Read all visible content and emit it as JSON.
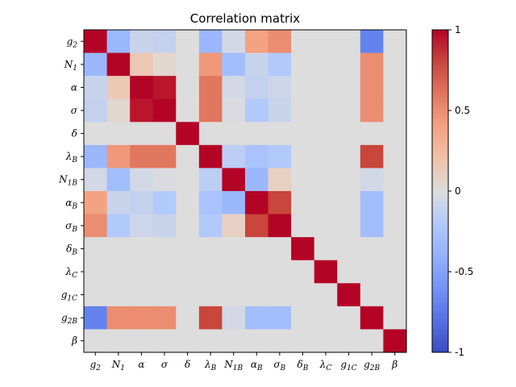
{
  "chart_data": {
    "type": "heatmap",
    "title": "Correlation matrix",
    "colormap": "coolwarm",
    "vmin": -1,
    "vmax": 1,
    "grid": false,
    "labels": [
      {
        "base": "g",
        "sub": "2"
      },
      {
        "base": "N",
        "sub": "1"
      },
      {
        "base": "α",
        "sub": ""
      },
      {
        "base": "σ",
        "sub": ""
      },
      {
        "base": "δ",
        "sub": ""
      },
      {
        "base": "λ",
        "sub": "B"
      },
      {
        "base": "N",
        "sub": "1B"
      },
      {
        "base": "α",
        "sub": "B"
      },
      {
        "base": "σ",
        "sub": "B"
      },
      {
        "base": "δ",
        "sub": "B"
      },
      {
        "base": "λ",
        "sub": "C"
      },
      {
        "base": "g",
        "sub": "1C"
      },
      {
        "base": "g",
        "sub": "2B"
      },
      {
        "base": "β",
        "sub": ""
      }
    ],
    "matrix": [
      [
        1.0,
        -0.35,
        -0.1,
        -0.12,
        0.0,
        -0.35,
        -0.05,
        0.4,
        0.5,
        0.0,
        0.0,
        0.0,
        -0.7,
        0.0
      ],
      [
        -0.35,
        1.0,
        0.15,
        0.05,
        0.0,
        0.45,
        -0.3,
        -0.1,
        -0.2,
        0.0,
        0.0,
        0.0,
        0.5,
        0.0
      ],
      [
        -0.1,
        0.15,
        1.0,
        0.95,
        0.0,
        0.6,
        -0.05,
        -0.12,
        -0.08,
        0.0,
        0.0,
        0.0,
        0.5,
        0.0
      ],
      [
        -0.12,
        0.05,
        0.95,
        1.0,
        0.0,
        0.6,
        -0.02,
        -0.2,
        -0.1,
        0.0,
        0.0,
        0.0,
        0.5,
        0.0
      ],
      [
        0.0,
        0.0,
        0.0,
        0.0,
        1.0,
        0.0,
        0.0,
        0.0,
        0.0,
        0.0,
        0.0,
        0.0,
        0.0,
        0.0
      ],
      [
        -0.35,
        0.45,
        0.6,
        0.6,
        0.0,
        1.0,
        -0.15,
        -0.25,
        -0.2,
        0.0,
        0.0,
        0.0,
        0.8,
        0.0
      ],
      [
        -0.05,
        -0.3,
        -0.05,
        -0.02,
        0.0,
        -0.15,
        1.0,
        -0.35,
        0.1,
        0.0,
        0.0,
        0.0,
        -0.05,
        0.0
      ],
      [
        0.4,
        -0.1,
        -0.12,
        -0.2,
        0.0,
        -0.25,
        -0.35,
        1.0,
        0.8,
        0.0,
        0.0,
        0.0,
        -0.3,
        0.0
      ],
      [
        0.5,
        -0.2,
        -0.08,
        -0.1,
        0.0,
        -0.2,
        0.1,
        0.8,
        1.0,
        0.0,
        0.0,
        0.0,
        -0.3,
        0.0
      ],
      [
        0.0,
        0.0,
        0.0,
        0.0,
        0.0,
        0.0,
        0.0,
        0.0,
        0.0,
        1.0,
        0.0,
        0.0,
        0.0,
        0.0
      ],
      [
        0.0,
        0.0,
        0.0,
        0.0,
        0.0,
        0.0,
        0.0,
        0.0,
        0.0,
        0.0,
        1.0,
        0.0,
        0.0,
        0.0
      ],
      [
        0.0,
        0.0,
        0.0,
        0.0,
        0.0,
        0.0,
        0.0,
        0.0,
        0.0,
        0.0,
        0.0,
        1.0,
        0.0,
        0.0
      ],
      [
        -0.7,
        0.5,
        0.5,
        0.5,
        0.0,
        0.8,
        -0.05,
        -0.3,
        -0.3,
        0.0,
        0.0,
        0.0,
        1.0,
        0.0
      ],
      [
        0.0,
        0.0,
        0.0,
        0.0,
        0.0,
        0.0,
        0.0,
        0.0,
        0.0,
        0.0,
        0.0,
        0.0,
        0.0,
        1.0
      ]
    ],
    "colorbar": {
      "ticks": [
        {
          "value": 1,
          "label": "1"
        },
        {
          "value": 0.5,
          "label": "0.5"
        },
        {
          "value": 0,
          "label": "0"
        },
        {
          "value": -0.5,
          "label": "-0.5"
        },
        {
          "value": -1,
          "label": "-1"
        }
      ]
    }
  }
}
